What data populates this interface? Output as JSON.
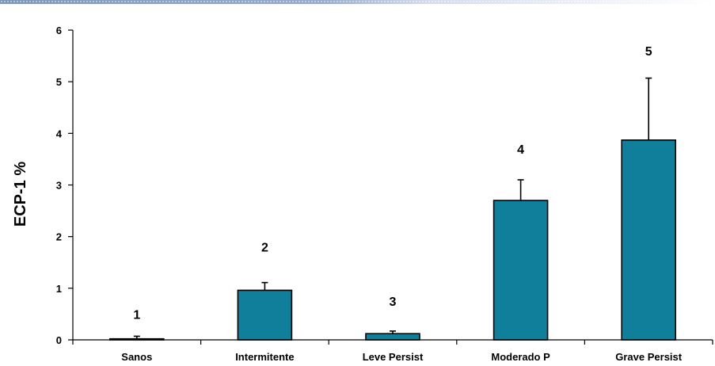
{
  "chart_data": {
    "type": "bar",
    "title": "",
    "xlabel": "",
    "ylabel": "ECP-1 %",
    "ylim": [
      0,
      6
    ],
    "yticks": [
      0,
      1,
      2,
      3,
      4,
      5,
      6
    ],
    "categories": [
      "Sanos",
      "Intermitente",
      "Leve Persist",
      "Moderado P",
      "Grave Persist"
    ],
    "values": [
      0.02,
      0.96,
      0.12,
      2.7,
      3.87
    ],
    "error_upper": [
      0.05,
      0.15,
      0.05,
      0.4,
      1.2
    ],
    "data_labels": [
      "1",
      "2",
      "3",
      "4",
      "5"
    ],
    "data_label_values": [
      0.5,
      1.8,
      0.75,
      3.7,
      5.6
    ],
    "bar_color": "#0f7f9c",
    "grid": false
  }
}
